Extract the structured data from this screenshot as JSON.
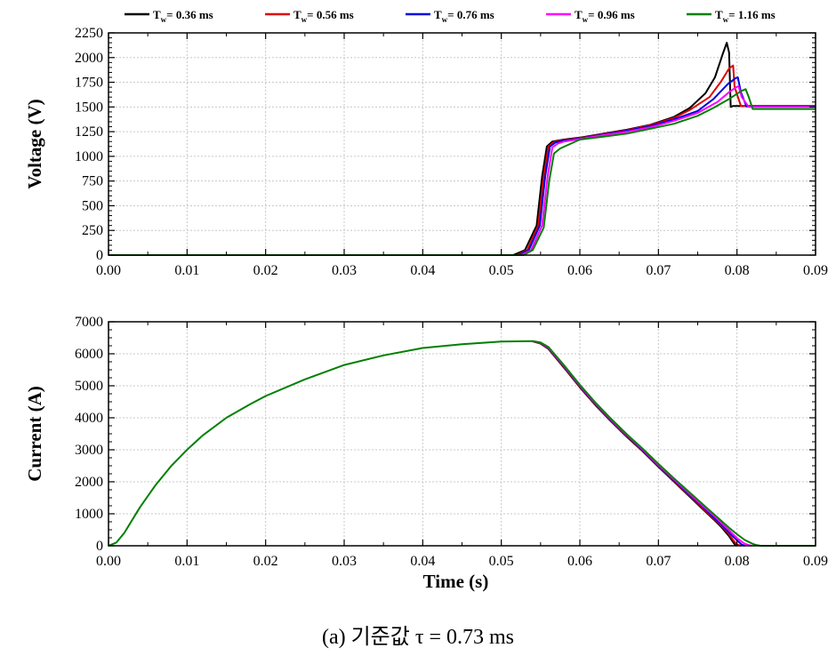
{
  "caption": "(a) 기준값 τ = 0.73 ms",
  "legend": [
    {
      "label": "T",
      "sub": "w",
      "value": "= 0.36 ms",
      "color": "#000000"
    },
    {
      "label": "T",
      "sub": "w",
      "value": "= 0.56 ms",
      "color": "#e00000"
    },
    {
      "label": "T",
      "sub": "w",
      "value": "= 0.76 ms",
      "color": "#0000e0"
    },
    {
      "label": "T",
      "sub": "w",
      "value": "= 0.96 ms",
      "color": "#ff00ff"
    },
    {
      "label": "T",
      "sub": "w",
      "value": "= 1.16 ms",
      "color": "#008000"
    }
  ],
  "chart_data": [
    {
      "type": "line",
      "ylabel": "Voltage (V)",
      "xlim": [
        0,
        0.09
      ],
      "ylim": [
        0,
        2250
      ],
      "xticks": [
        "0.00",
        "0.01",
        "0.02",
        "0.03",
        "0.04",
        "0.05",
        "0.06",
        "0.07",
        "0.08",
        "0.09"
      ],
      "yticks": [
        "0",
        "250",
        "500",
        "750",
        "1000",
        "1250",
        "1500",
        "1750",
        "2000",
        "2250"
      ],
      "grid": true,
      "series": [
        {
          "name": "T_w = 0.36 ms",
          "color": "#000000",
          "x": [
            0,
            0.0515,
            0.053,
            0.0545,
            0.0552,
            0.0558,
            0.0565,
            0.058,
            0.06,
            0.063,
            0.066,
            0.069,
            0.072,
            0.074,
            0.076,
            0.0772,
            0.0782,
            0.0787,
            0.079,
            0.0792,
            0.0795,
            0.09
          ],
          "y": [
            0,
            0,
            50,
            300,
            800,
            1100,
            1150,
            1170,
            1190,
            1230,
            1270,
            1320,
            1400,
            1490,
            1640,
            1800,
            2040,
            2150,
            2050,
            1500,
            1510,
            1510
          ]
        },
        {
          "name": "T_w = 0.56 ms",
          "color": "#e00000",
          "x": [
            0,
            0.052,
            0.0533,
            0.0547,
            0.0554,
            0.056,
            0.0567,
            0.058,
            0.06,
            0.063,
            0.066,
            0.069,
            0.072,
            0.074,
            0.0765,
            0.078,
            0.079,
            0.0795,
            0.0797,
            0.0805,
            0.09
          ],
          "y": [
            0,
            0,
            50,
            300,
            800,
            1100,
            1145,
            1165,
            1185,
            1225,
            1265,
            1315,
            1390,
            1470,
            1600,
            1760,
            1890,
            1920,
            1700,
            1510,
            1510
          ]
        },
        {
          "name": "T_w = 0.76 ms",
          "color": "#0000e0",
          "x": [
            0,
            0.0522,
            0.0535,
            0.0549,
            0.0556,
            0.0562,
            0.0569,
            0.058,
            0.06,
            0.063,
            0.066,
            0.069,
            0.072,
            0.075,
            0.077,
            0.0788,
            0.0798,
            0.0801,
            0.0805,
            0.0812,
            0.09
          ],
          "y": [
            0,
            0,
            50,
            300,
            800,
            1100,
            1140,
            1160,
            1180,
            1220,
            1260,
            1305,
            1375,
            1460,
            1580,
            1730,
            1790,
            1800,
            1650,
            1505,
            1505
          ]
        },
        {
          "name": "T_w = 0.96 ms",
          "color": "#ff00ff",
          "x": [
            0,
            0.0525,
            0.0538,
            0.0552,
            0.0559,
            0.0565,
            0.0572,
            0.058,
            0.06,
            0.063,
            0.066,
            0.069,
            0.072,
            0.075,
            0.0775,
            0.079,
            0.0799,
            0.0802,
            0.0806,
            0.0815,
            0.09
          ],
          "y": [
            0,
            0,
            50,
            300,
            800,
            1090,
            1130,
            1150,
            1175,
            1215,
            1250,
            1295,
            1360,
            1440,
            1550,
            1650,
            1700,
            1710,
            1600,
            1500,
            1500
          ]
        },
        {
          "name": "T_w = 1.16 ms",
          "color": "#008000",
          "x": [
            0,
            0.0528,
            0.054,
            0.0554,
            0.0561,
            0.0567,
            0.0575,
            0.06,
            0.063,
            0.066,
            0.069,
            0.072,
            0.075,
            0.077,
            0.079,
            0.0805,
            0.0811,
            0.0815,
            0.082,
            0.09
          ],
          "y": [
            0,
            0,
            50,
            280,
            750,
            1030,
            1080,
            1170,
            1200,
            1230,
            1280,
            1330,
            1410,
            1490,
            1580,
            1660,
            1680,
            1600,
            1480,
            1480
          ]
        }
      ]
    },
    {
      "type": "line",
      "xlabel": "Time (s)",
      "ylabel": "Current (A)",
      "xlim": [
        0,
        0.09
      ],
      "ylim": [
        0,
        7000
      ],
      "xticks": [
        "0.00",
        "0.01",
        "0.02",
        "0.03",
        "0.04",
        "0.05",
        "0.06",
        "0.07",
        "0.08",
        "0.09"
      ],
      "yticks": [
        "0",
        "1000",
        "2000",
        "3000",
        "4000",
        "5000",
        "6000",
        "7000"
      ],
      "grid": true,
      "series": [
        {
          "name": "T_w = 0.36 ms",
          "color": "#000000",
          "x": [
            0.054,
            0.055,
            0.056,
            0.058,
            0.06,
            0.062,
            0.064,
            0.066,
            0.068,
            0.07,
            0.072,
            0.074,
            0.076,
            0.077,
            0.078,
            0.079,
            0.0795,
            0.0798,
            0.08
          ],
          "y": [
            6390,
            6320,
            6150,
            5560,
            4950,
            4390,
            3880,
            3400,
            2950,
            2470,
            2000,
            1530,
            1060,
            830,
            590,
            300,
            110,
            20,
            0
          ]
        },
        {
          "name": "T_w = 0.56 ms",
          "color": "#e00000",
          "x": [
            0.054,
            0.055,
            0.056,
            0.058,
            0.06,
            0.062,
            0.064,
            0.066,
            0.068,
            0.07,
            0.072,
            0.074,
            0.076,
            0.077,
            0.078,
            0.079,
            0.0795,
            0.08,
            0.0805
          ],
          "y": [
            6390,
            6330,
            6165,
            5580,
            4970,
            4410,
            3900,
            3420,
            2970,
            2490,
            2020,
            1560,
            1090,
            860,
            630,
            360,
            180,
            40,
            0
          ]
        },
        {
          "name": "T_w = 0.76 ms",
          "color": "#0000e0",
          "x": [
            0.054,
            0.055,
            0.056,
            0.058,
            0.06,
            0.062,
            0.064,
            0.066,
            0.068,
            0.07,
            0.072,
            0.074,
            0.076,
            0.077,
            0.078,
            0.079,
            0.08,
            0.0806,
            0.081
          ],
          "y": [
            6395,
            6340,
            6180,
            5600,
            4990,
            4430,
            3920,
            3440,
            2990,
            2510,
            2040,
            1590,
            1130,
            900,
            670,
            420,
            170,
            40,
            0
          ]
        },
        {
          "name": "T_w = 0.96 ms",
          "color": "#ff00ff",
          "x": [
            0.054,
            0.055,
            0.056,
            0.058,
            0.06,
            0.062,
            0.064,
            0.066,
            0.068,
            0.07,
            0.072,
            0.074,
            0.076,
            0.077,
            0.078,
            0.079,
            0.08,
            0.081,
            0.0818
          ],
          "y": [
            6395,
            6345,
            6195,
            5620,
            5010,
            4450,
            3940,
            3460,
            3010,
            2530,
            2070,
            1620,
            1170,
            950,
            720,
            480,
            240,
            60,
            0
          ]
        },
        {
          "name": "T_w = 1.16 ms",
          "color": "#008000",
          "x": [
            0,
            0.001,
            0.002,
            0.004,
            0.006,
            0.008,
            0.01,
            0.012,
            0.015,
            0.018,
            0.02,
            0.025,
            0.03,
            0.035,
            0.04,
            0.045,
            0.05,
            0.052,
            0.054,
            0.055,
            0.056,
            0.058,
            0.06,
            0.062,
            0.064,
            0.066,
            0.068,
            0.07,
            0.072,
            0.074,
            0.076,
            0.078,
            0.079,
            0.08,
            0.081,
            0.082,
            0.0825,
            0.083,
            0.086,
            0.09
          ],
          "y": [
            0,
            100,
            400,
            1200,
            1900,
            2500,
            3000,
            3450,
            4000,
            4420,
            4680,
            5200,
            5650,
            5950,
            6180,
            6300,
            6380,
            6390,
            6395,
            6355,
            6210,
            5640,
            5030,
            4470,
            3960,
            3480,
            3030,
            2560,
            2100,
            1660,
            1220,
            780,
            560,
            360,
            180,
            60,
            20,
            0,
            0,
            0
          ]
        }
      ]
    }
  ]
}
